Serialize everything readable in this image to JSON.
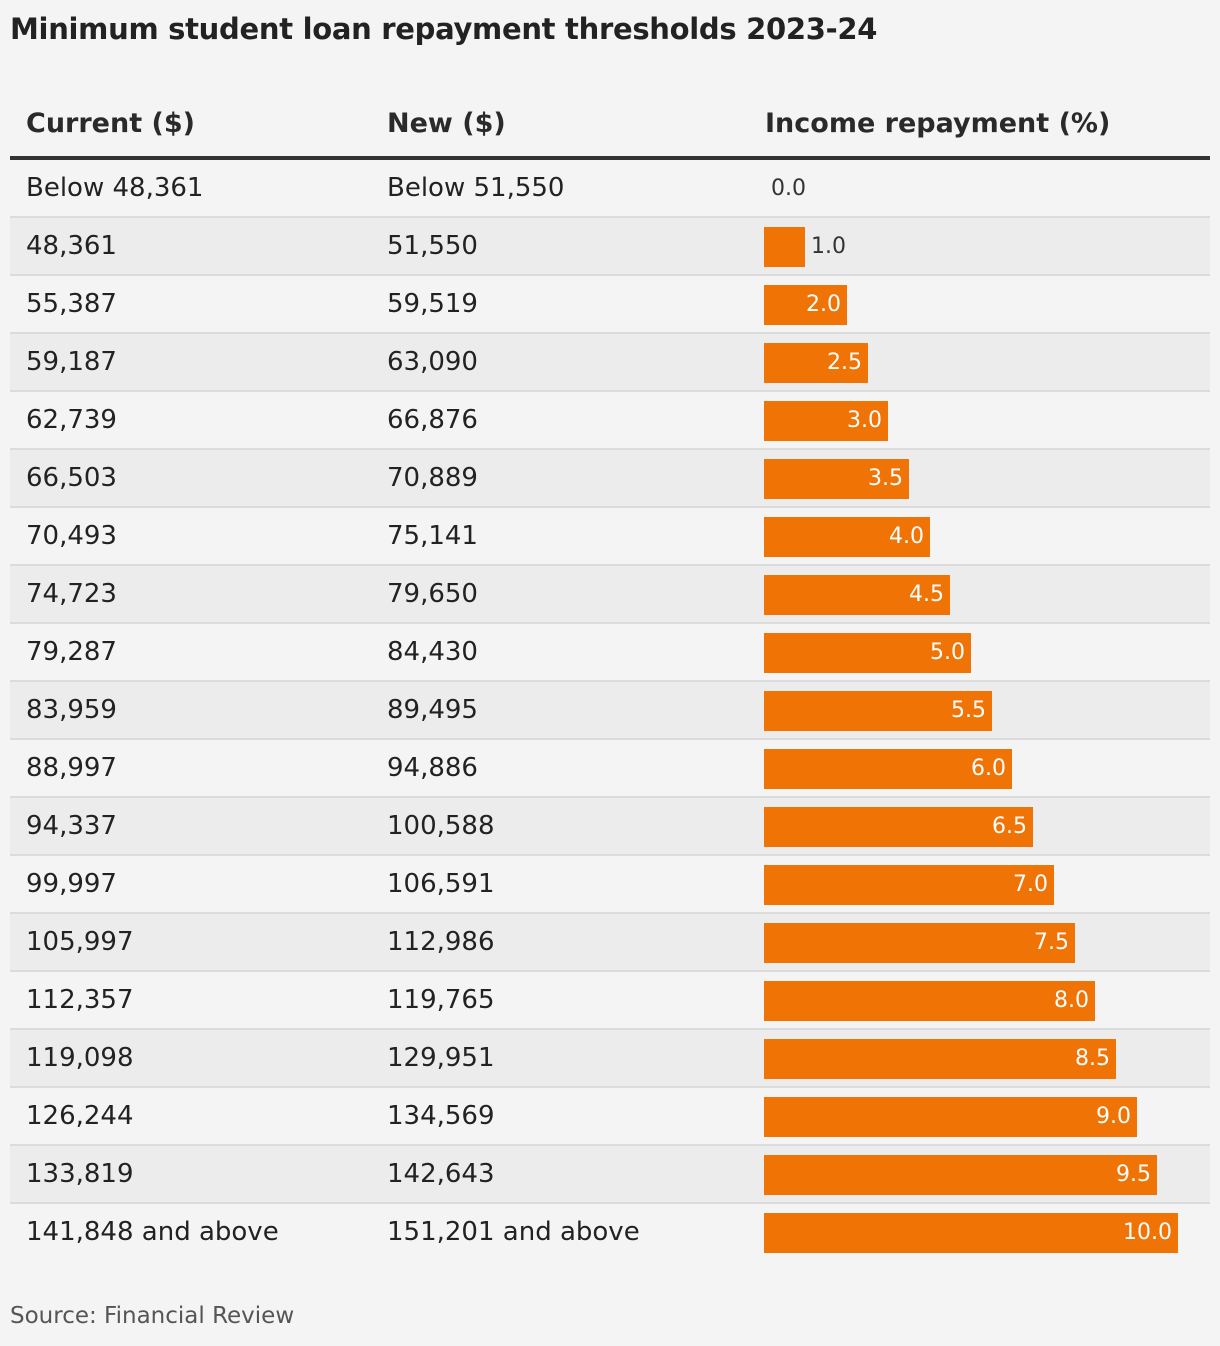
{
  "title": "Minimum student loan repayment thresholds 2023-24",
  "source": "Source: Financial Review",
  "colors": {
    "bar": "#f07306",
    "background": "#f4f4f4",
    "row_alt": "#ececec"
  },
  "chart_data": {
    "type": "table",
    "title": "Minimum student loan repayment thresholds 2023-24",
    "columns": [
      "Current ($)",
      "New ($)",
      "Income repayment (%)"
    ],
    "bar_column": "Income repayment (%)",
    "xlim": [
      0,
      10
    ],
    "rows": [
      {
        "current": "Below 48,361",
        "new": "Below 51,550",
        "rate": 0.0,
        "rate_label": "0.0"
      },
      {
        "current": "48,361",
        "new": "51,550",
        "rate": 1.0,
        "rate_label": "1.0"
      },
      {
        "current": "55,387",
        "new": "59,519",
        "rate": 2.0,
        "rate_label": "2.0"
      },
      {
        "current": "59,187",
        "new": "63,090",
        "rate": 2.5,
        "rate_label": "2.5"
      },
      {
        "current": "62,739",
        "new": "66,876",
        "rate": 3.0,
        "rate_label": "3.0"
      },
      {
        "current": "66,503",
        "new": "70,889",
        "rate": 3.5,
        "rate_label": "3.5"
      },
      {
        "current": "70,493",
        "new": "75,141",
        "rate": 4.0,
        "rate_label": "4.0"
      },
      {
        "current": "74,723",
        "new": "79,650",
        "rate": 4.5,
        "rate_label": "4.5"
      },
      {
        "current": "79,287",
        "new": "84,430",
        "rate": 5.0,
        "rate_label": "5.0"
      },
      {
        "current": "83,959",
        "new": "89,495",
        "rate": 5.5,
        "rate_label": "5.5"
      },
      {
        "current": "88,997",
        "new": "94,886",
        "rate": 6.0,
        "rate_label": "6.0"
      },
      {
        "current": "94,337",
        "new": "100,588",
        "rate": 6.5,
        "rate_label": "6.5"
      },
      {
        "current": "99,997",
        "new": "106,591",
        "rate": 7.0,
        "rate_label": "7.0"
      },
      {
        "current": "105,997",
        "new": "112,986",
        "rate": 7.5,
        "rate_label": "7.5"
      },
      {
        "current": "112,357",
        "new": "119,765",
        "rate": 8.0,
        "rate_label": "8.0"
      },
      {
        "current": "119,098",
        "new": "129,951",
        "rate": 8.5,
        "rate_label": "8.5"
      },
      {
        "current": "126,244",
        "new": "134,569",
        "rate": 9.0,
        "rate_label": "9.0"
      },
      {
        "current": "133,819",
        "new": "142,643",
        "rate": 9.5,
        "rate_label": "9.5"
      },
      {
        "current": "141,848 and above",
        "new": "151,201 and above",
        "rate": 10.0,
        "rate_label": "10.0"
      }
    ]
  }
}
